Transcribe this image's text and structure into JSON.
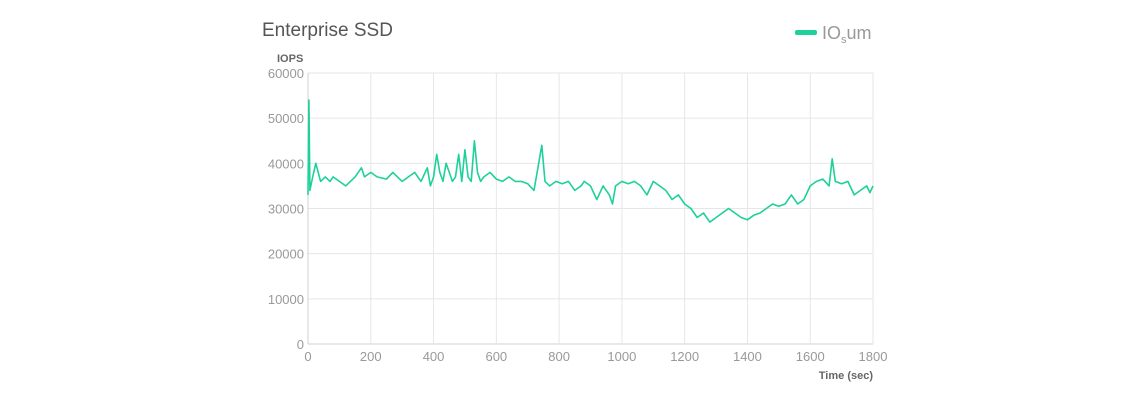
{
  "chart_data": {
    "type": "line",
    "title": "Enterprise SSD",
    "ylabel": "IOPS",
    "xlabel": "Time (sec)",
    "xlim": [
      0,
      1800
    ],
    "ylim": [
      0,
      60000
    ],
    "x_ticks": [
      0,
      200,
      400,
      600,
      800,
      1000,
      1200,
      1400,
      1600,
      1800
    ],
    "y_ticks": [
      0,
      10000,
      20000,
      30000,
      40000,
      50000,
      60000
    ],
    "grid": true,
    "legend_position": "top-right",
    "series": [
      {
        "name": "IOsum",
        "name_main_1": "IO",
        "name_sub": "s",
        "name_main_2": "um",
        "color": "#1ed09a",
        "x": [
          0,
          3,
          6,
          15,
          25,
          40,
          55,
          70,
          80,
          100,
          120,
          150,
          170,
          180,
          200,
          220,
          250,
          270,
          300,
          320,
          340,
          360,
          380,
          390,
          400,
          410,
          420,
          430,
          440,
          450,
          460,
          470,
          480,
          490,
          500,
          510,
          520,
          530,
          540,
          550,
          560,
          580,
          600,
          620,
          640,
          660,
          680,
          700,
          720,
          735,
          745,
          755,
          770,
          790,
          810,
          830,
          850,
          870,
          880,
          900,
          920,
          940,
          960,
          970,
          980,
          1000,
          1020,
          1040,
          1060,
          1080,
          1100,
          1120,
          1140,
          1160,
          1180,
          1200,
          1220,
          1240,
          1260,
          1280,
          1300,
          1320,
          1340,
          1360,
          1380,
          1400,
          1420,
          1440,
          1460,
          1480,
          1500,
          1520,
          1540,
          1560,
          1580,
          1600,
          1620,
          1640,
          1660,
          1670,
          1680,
          1700,
          1720,
          1740,
          1760,
          1780,
          1790,
          1800
        ],
        "values": [
          33000,
          54000,
          34000,
          37000,
          40000,
          36000,
          37000,
          36000,
          37000,
          36000,
          35000,
          37000,
          39000,
          37000,
          38000,
          37000,
          36500,
          38000,
          36000,
          37000,
          38000,
          36000,
          39000,
          35000,
          37000,
          42000,
          38000,
          36000,
          40000,
          38000,
          36000,
          37000,
          42000,
          36000,
          43000,
          37000,
          36000,
          45000,
          38000,
          36000,
          37000,
          38000,
          36500,
          36000,
          37000,
          36000,
          36000,
          35500,
          34000,
          40000,
          44000,
          36000,
          35000,
          36000,
          35500,
          36000,
          34000,
          35000,
          36000,
          35000,
          32000,
          35000,
          33000,
          31000,
          35000,
          36000,
          35500,
          36000,
          35000,
          33000,
          36000,
          35000,
          34000,
          32000,
          33000,
          31000,
          30000,
          28000,
          29000,
          27000,
          28000,
          29000,
          30000,
          29000,
          28000,
          27500,
          28500,
          29000,
          30000,
          31000,
          30500,
          31000,
          33000,
          31000,
          32000,
          35000,
          36000,
          36500,
          35000,
          41000,
          36000,
          35500,
          36000,
          33000,
          34000,
          35000,
          33500,
          35000
        ]
      }
    ]
  }
}
